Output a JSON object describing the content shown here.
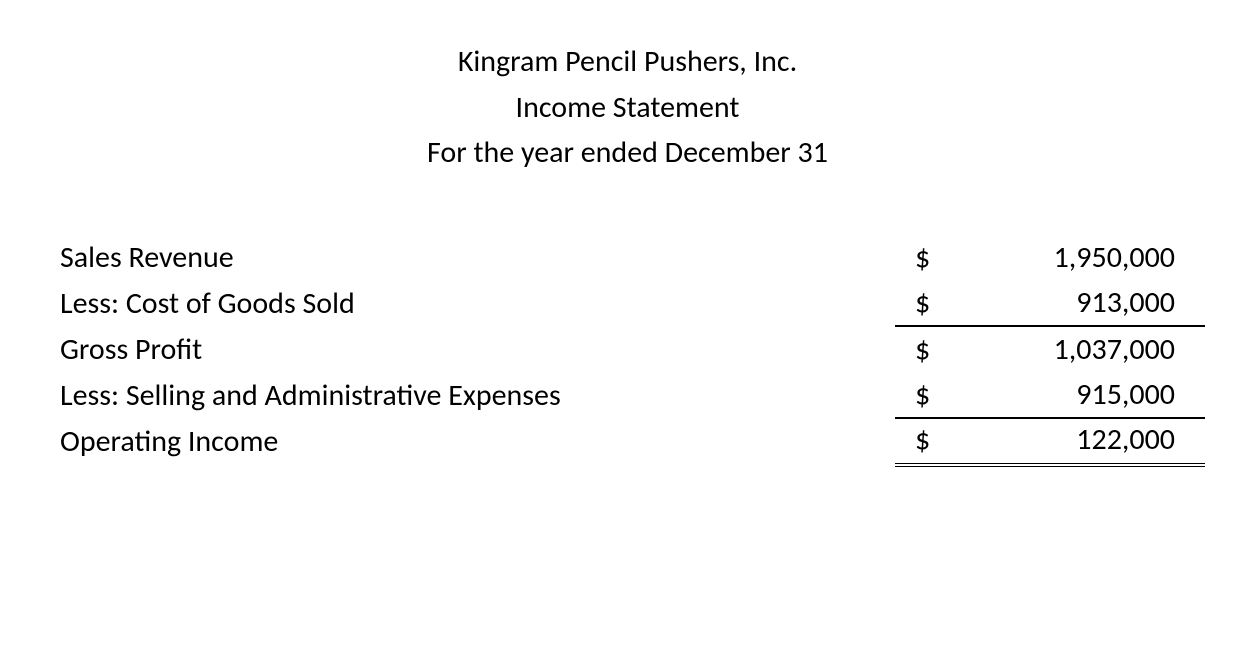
{
  "header": {
    "company": "Kingram Pencil Pushers, Inc.",
    "title": "Income Statement",
    "period": "For the year ended December 31"
  },
  "rows": [
    {
      "label": "Sales Revenue",
      "currency": "$",
      "value": "1,950,000",
      "underline": false,
      "double": false
    },
    {
      "label": "Less: Cost of Goods Sold",
      "currency": "$",
      "value": "913,000",
      "underline": true,
      "double": false
    },
    {
      "label": "Gross Profit",
      "currency": "$",
      "value": "1,037,000",
      "underline": false,
      "double": false
    },
    {
      "label": "Less: Selling and Administrative Expenses",
      "currency": "$",
      "value": "915,000",
      "underline": true,
      "double": false
    },
    {
      "label": "Operating Income",
      "currency": "$",
      "value": "122,000",
      "underline": false,
      "double": true
    }
  ],
  "style": {
    "background_color": "#ffffff",
    "text_color": "#000000",
    "font_family": "Calibri",
    "header_fontsize": 30,
    "row_fontsize": 30,
    "border_color": "#000000"
  }
}
